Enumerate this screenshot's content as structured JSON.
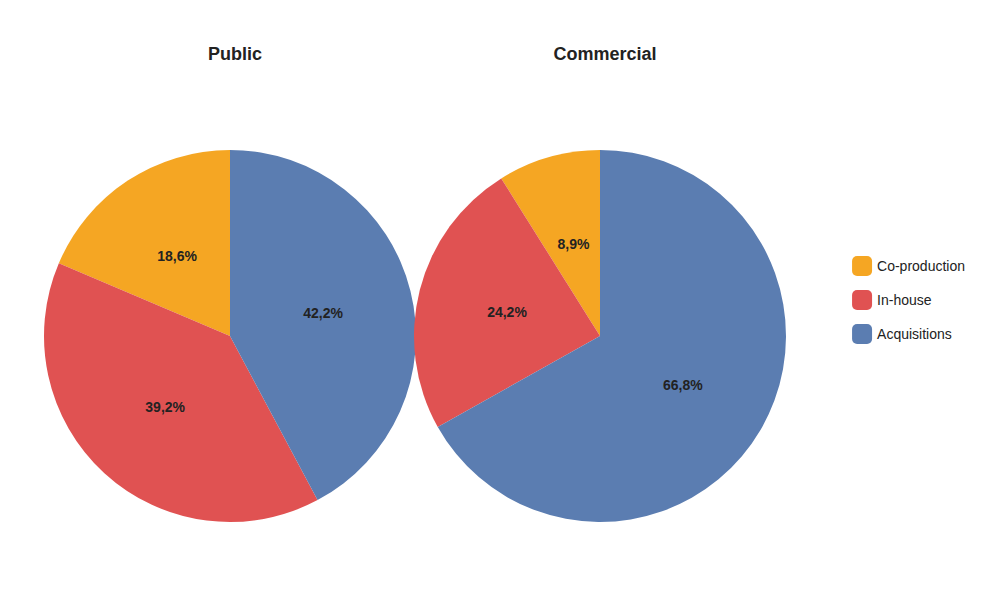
{
  "chart_data": [
    {
      "type": "pie",
      "title": "Public",
      "categories": [
        "Co-production",
        "In-house",
        "Acquisitions"
      ],
      "values": [
        18.6,
        39.2,
        42.2
      ],
      "value_labels": [
        "18,6%",
        "39,2%",
        "42,2%"
      ],
      "colors": [
        "#F5A623",
        "#E05252",
        "#5B7DB1"
      ],
      "data_labels": true,
      "legend": "right"
    },
    {
      "type": "pie",
      "title": "Commercial",
      "categories": [
        "Co-production",
        "In-house",
        "Acquisitions"
      ],
      "values": [
        8.9,
        24.2,
        66.8
      ],
      "value_labels": [
        "8,9%",
        "24,2%",
        "66,8%"
      ],
      "colors": [
        "#F5A623",
        "#E05252",
        "#5B7DB1"
      ],
      "data_labels": true,
      "legend": "right"
    }
  ]
}
